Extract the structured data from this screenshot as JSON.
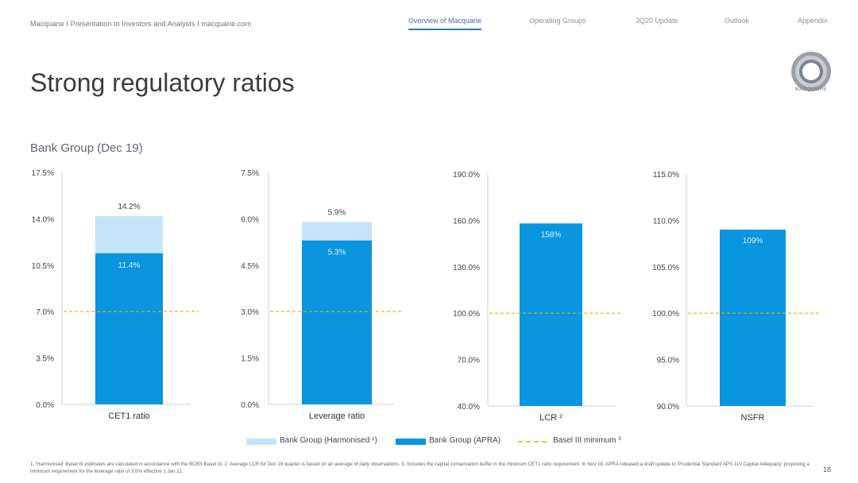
{
  "header": {
    "left_text": "Macquarie  I  Presentation to Investors and Analysts I  macquarie.com",
    "nav": [
      {
        "label": "Overview of Macquarie",
        "active": true
      },
      {
        "label": "Operating Groups",
        "active": false
      },
      {
        "label": "3Q20 Update",
        "active": false
      },
      {
        "label": "Outlook",
        "active": false
      },
      {
        "label": "Appendix",
        "active": false
      }
    ]
  },
  "logo": {
    "text": "MACQUARIE",
    "icon": "macquarie-holey-dollar-logo"
  },
  "page": {
    "title": "Strong regulatory ratios",
    "subtitle": "Bank Group (Dec 19)",
    "page_number": "18"
  },
  "colors": {
    "apra": "#0a95df",
    "harmonised": "#c4e5f7",
    "basel_line": "#e0b000",
    "axis": "#d0d0d0"
  },
  "legend": {
    "harmonised": "Bank Group (Harmonised ¹)",
    "apra": "Bank Group (APRA)",
    "basel": "Basel III minimum ³"
  },
  "footnote": "1. 'Harmonised' Basel III estimates are calculated in accordance with the BCBS Basel III.  2. Average LCR for Dec 19 quarter is based on an average of daily observations.  3. Includes the capital conservation buffer in the minimum CET1 ratio requirement. In Nov 18, APRA released a draft update to 'Prudential Standard APS 110 Capital Adequacy' proposing a minimum requirement for the leverage ratio of 3.5% effective 1 Jan 22.",
  "chart_data": [
    {
      "type": "bar",
      "category": "CET1 ratio",
      "ylim": [
        0,
        17.5
      ],
      "ticks": [
        "0.0%",
        "3.5%",
        "7.0%",
        "10.5%",
        "14.0%",
        "17.5%"
      ],
      "apra": 11.4,
      "harmonised": 14.2,
      "basel_min": 7.0,
      "apra_label": "11.4%",
      "harmonised_label": "14.2%"
    },
    {
      "type": "bar",
      "category": "Leverage ratio",
      "ylim": [
        0,
        7.5
      ],
      "ticks": [
        "0.0%",
        "1.5%",
        "3.0%",
        "4.5%",
        "6.0%",
        "7.5%"
      ],
      "apra": 5.3,
      "harmonised": 5.9,
      "basel_min": 3.0,
      "apra_label": "5.3%",
      "harmonised_label": "5.9%"
    },
    {
      "type": "bar",
      "category": "LCR ²",
      "ylim": [
        40,
        190
      ],
      "ticks": [
        "40.0%",
        "70.0%",
        "100.0%",
        "130.0%",
        "160.0%",
        "190.0%"
      ],
      "apra": 158,
      "basel_min": 100,
      "apra_label": "158%"
    },
    {
      "type": "bar",
      "category": "NSFR",
      "ylim": [
        90,
        115
      ],
      "ticks": [
        "90.0%",
        "95.0%",
        "100.0%",
        "105.0%",
        "110.0%",
        "115.0%"
      ],
      "apra": 109,
      "basel_min": 100,
      "apra_label": "109%"
    }
  ]
}
